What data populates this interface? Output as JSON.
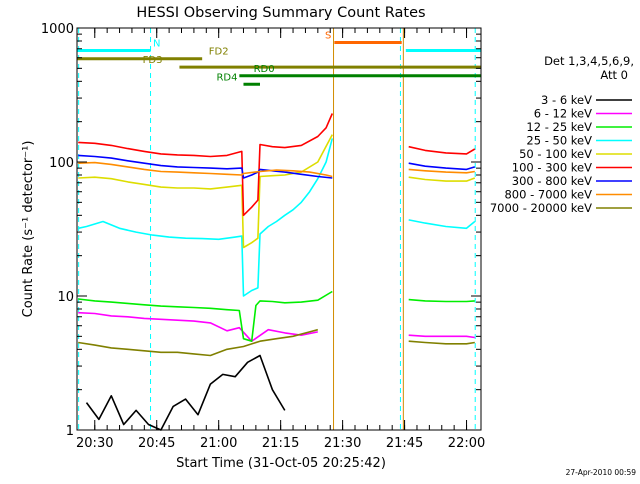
{
  "chart_data": {
    "type": "line",
    "title": "HESSI Observing Summary Count Rates",
    "xlabel": "Start Time (31-Oct-05 20:25:42)",
    "ylabel": "Count Rate (s⁻¹ detector⁻¹)",
    "y_scale": "log",
    "ylim": [
      1,
      1000
    ],
    "xlim": [
      "20:25:42",
      "22:03:30"
    ],
    "x_tick_labels": [
      "20:30",
      "20:45",
      "21:00",
      "21:15",
      "21:30",
      "21:45",
      "22:00"
    ],
    "x_ticks_minutes": [
      270,
      285,
      300,
      315,
      330,
      345,
      360
    ],
    "y_tick_labels": [
      "1",
      "10",
      "100",
      "1000"
    ],
    "y_ticks": [
      1,
      10,
      100,
      1000
    ],
    "grid": false,
    "legend_position": "right",
    "legend_header": [
      "Det 1,3,4,5,6,9,",
      "Att 0"
    ],
    "date_stamp": "27-Apr-2010 00:59",
    "x_domain_minutes": [
      265.7,
      363.5
    ],
    "data_gaps_minutes": [
      [
        327.8,
        344.5
      ]
    ],
    "series": [
      {
        "name": "3 - 6 keV",
        "color": "#000000",
        "x": [
          268,
          271,
          274,
          277,
          280,
          283,
          286,
          289,
          292,
          295,
          298,
          301,
          304,
          307,
          310,
          313,
          316
        ],
        "values": [
          1.6,
          1.2,
          1.8,
          1.1,
          1.4,
          1.1,
          1,
          1.5,
          1.7,
          1.3,
          2.2,
          2.6,
          2.5,
          3.2,
          3.6,
          2,
          1.4
        ]
      },
      {
        "name": "6 - 12 keV",
        "color": "#ff00ff",
        "x": [
          266,
          270,
          274,
          278,
          282,
          286,
          290,
          294,
          298,
          302,
          305,
          308,
          312,
          316,
          320,
          324,
          346,
          350,
          355,
          360,
          362
        ],
        "values": [
          7.5,
          7.4,
          7.1,
          7,
          6.8,
          6.7,
          6.6,
          6.5,
          6.3,
          5.5,
          5.8,
          4.6,
          5.6,
          5.3,
          5.1,
          5.4,
          5.1,
          5,
          5,
          5,
          4.9
        ]
      },
      {
        "name": "12 - 25 keV",
        "color": "#00ee00",
        "x": [
          266,
          270,
          274,
          278,
          282,
          286,
          290,
          294,
          298,
          302,
          305,
          306,
          308,
          309,
          310,
          313,
          316,
          320,
          324,
          327.5,
          346,
          350,
          355,
          360,
          362
        ],
        "values": [
          9.5,
          9.2,
          9,
          8.8,
          8.6,
          8.4,
          8.3,
          8.2,
          8.1,
          7.9,
          7.8,
          4.8,
          4.6,
          8.5,
          9.2,
          9.1,
          8.9,
          9,
          9.3,
          10.8,
          9.4,
          9.2,
          9.1,
          9.1,
          9.2
        ]
      },
      {
        "name": "25 - 50 keV",
        "color": "#00ffff",
        "x": [
          266,
          268,
          272,
          276,
          280,
          284,
          288,
          292,
          296,
          300,
          304,
          305.6,
          306,
          308,
          309.5,
          310,
          312,
          314,
          316,
          318,
          320,
          322,
          324,
          326,
          327.5,
          346,
          350,
          355,
          360,
          362
        ],
        "values": [
          32,
          33,
          36,
          32,
          30,
          28.5,
          27.5,
          27,
          26.8,
          26.5,
          27.5,
          28,
          10,
          11,
          11.5,
          29,
          33,
          36,
          40,
          44,
          50,
          60,
          75,
          100,
          150,
          37,
          35,
          33,
          32,
          36
        ]
      },
      {
        "name": "50 - 100 keV",
        "color": "#dddd00",
        "x": [
          266,
          270,
          274,
          278,
          282,
          286,
          290,
          294,
          298,
          302,
          305.6,
          306,
          308,
          309.5,
          310,
          313,
          316,
          320,
          324,
          327.5,
          346,
          350,
          355,
          360,
          362
        ],
        "values": [
          76,
          77,
          75,
          71,
          68,
          65,
          64,
          64,
          63,
          65,
          67,
          23,
          25,
          27,
          78,
          79,
          80,
          84,
          100,
          160,
          77,
          74,
          72,
          72,
          76
        ]
      },
      {
        "name": "100 - 300 keV",
        "color": "#ff0000",
        "x": [
          266,
          270,
          274,
          278,
          282,
          286,
          290,
          294,
          298,
          302,
          305.6,
          306,
          308,
          309.5,
          310,
          313,
          316,
          320,
          324,
          326,
          327.5,
          346,
          350,
          355,
          360,
          362
        ],
        "values": [
          140,
          138,
          133,
          126,
          120,
          115,
          113,
          112,
          110,
          112,
          120,
          40,
          46,
          52,
          135,
          130,
          128,
          133,
          155,
          180,
          230,
          130,
          122,
          117,
          115,
          125
        ]
      },
      {
        "name": "300 - 800 keV",
        "color": "#0000ff",
        "x": [
          266,
          270,
          274,
          278,
          282,
          286,
          290,
          294,
          298,
          302,
          305.6,
          306,
          308,
          309.5,
          310,
          313,
          316,
          320,
          324,
          327.5,
          346,
          350,
          355,
          360,
          362
        ],
        "values": [
          112,
          110,
          107,
          102,
          98,
          94,
          92,
          91,
          90,
          89,
          90,
          76,
          80,
          84,
          88,
          86,
          84,
          81,
          78,
          76,
          98,
          93,
          90,
          88,
          92
        ]
      },
      {
        "name": "800 - 7000 keV",
        "color": "#ff8c00",
        "x": [
          266,
          270,
          274,
          278,
          282,
          286,
          290,
          294,
          298,
          302,
          305.6,
          306,
          310,
          314,
          318,
          322,
          326,
          327.5,
          346,
          350,
          355,
          360,
          362
        ],
        "values": [
          98,
          99,
          96,
          92,
          88,
          85,
          84,
          83,
          82,
          81,
          80,
          82,
          85,
          87,
          86,
          84,
          80,
          78,
          88,
          86,
          84,
          83,
          85
        ]
      },
      {
        "name": "7000 - 20000 keV",
        "color": "#808000",
        "x": [
          266,
          270,
          274,
          278,
          282,
          286,
          290,
          294,
          298,
          302,
          306,
          310,
          314,
          318,
          322,
          324,
          346,
          350,
          355,
          360,
          362
        ],
        "values": [
          4.5,
          4.3,
          4.1,
          4,
          3.9,
          3.8,
          3.8,
          3.7,
          3.6,
          4,
          4.2,
          4.6,
          4.8,
          5,
          5.4,
          5.6,
          4.6,
          4.5,
          4.4,
          4.4,
          4.5
        ]
      }
    ],
    "flag_bars": [
      {
        "label": "N",
        "color": "#00ffff",
        "level": 680,
        "segments": [
          [
            265.7,
            283.5
          ],
          [
            345.3,
            363.5
          ]
        ],
        "label_at": 285
      },
      {
        "label": "FD2",
        "color": "#808000",
        "level": 590,
        "segments": [
          [
            265.7,
            296
          ]
        ],
        "label_at": 300
      },
      {
        "label": "FD3",
        "color": "#808000",
        "level": 510,
        "segments": [
          [
            290.5,
            363.5
          ]
        ],
        "label_at": 284
      },
      {
        "label": "RD0",
        "color": "#008000",
        "level": 440,
        "segments": [
          [
            305,
            363.5
          ]
        ],
        "label_at": 311
      },
      {
        "label": "RD4",
        "color": "#008000",
        "level": 380,
        "segments": [
          [
            306,
            310
          ]
        ],
        "label_at": 302
      },
      {
        "label": "S",
        "color": "#ff6600",
        "level": 780,
        "segments": [
          [
            328,
            344.3
          ]
        ],
        "label_at": 326.5
      }
    ],
    "vlines": [
      {
        "x": 266.1,
        "color": "#00ffff",
        "style": "dashed"
      },
      {
        "x": 283.5,
        "color": "#00ffff",
        "style": "dashed"
      },
      {
        "x": 327.8,
        "color": "#d28c00",
        "style": "solid"
      },
      {
        "x": 344.0,
        "color": "#00ffff",
        "style": "dashed"
      },
      {
        "x": 344.7,
        "color": "#d28c00",
        "style": "solid"
      },
      {
        "x": 362.1,
        "color": "#00ffff",
        "style": "dashed"
      }
    ]
  }
}
